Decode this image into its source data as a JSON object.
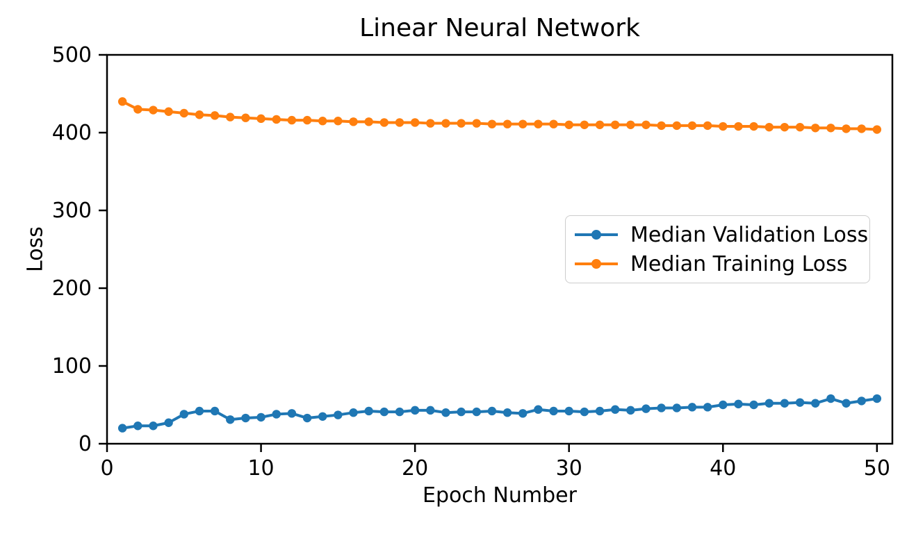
{
  "chart_data": {
    "type": "line",
    "title": "Linear Neural Network",
    "xlabel": "Epoch Number",
    "ylabel": "Loss",
    "xlim": [
      0,
      51
    ],
    "ylim": [
      0,
      500
    ],
    "xticks": [
      0,
      10,
      20,
      30,
      40,
      50
    ],
    "yticks": [
      0,
      100,
      200,
      300,
      400,
      500
    ],
    "grid": false,
    "background": "#ffffff",
    "axis_color": "#000000",
    "legend_position": "center right",
    "legend_border_color": "#cccccc",
    "x": [
      1,
      2,
      3,
      4,
      5,
      6,
      7,
      8,
      9,
      10,
      11,
      12,
      13,
      14,
      15,
      16,
      17,
      18,
      19,
      20,
      21,
      22,
      23,
      24,
      25,
      26,
      27,
      28,
      29,
      30,
      31,
      32,
      33,
      34,
      35,
      36,
      37,
      38,
      39,
      40,
      41,
      42,
      43,
      44,
      45,
      46,
      47,
      48,
      49,
      50
    ],
    "series": [
      {
        "name": "Median Validation Loss",
        "color": "#1f77b4",
        "marker": "circle",
        "values": [
          20,
          23,
          23,
          27,
          38,
          42,
          42,
          31,
          33,
          34,
          38,
          39,
          33,
          35,
          37,
          40,
          42,
          41,
          41,
          43,
          43,
          40,
          41,
          41,
          42,
          40,
          39,
          44,
          42,
          42,
          41,
          42,
          44,
          43,
          45,
          46,
          46,
          47,
          47,
          50,
          51,
          50,
          52,
          52,
          53,
          52,
          58,
          52,
          55,
          58
        ]
      },
      {
        "name": "Median Training Loss",
        "color": "#ff7f0e",
        "marker": "circle",
        "values": [
          440,
          430,
          429,
          427,
          425,
          423,
          422,
          420,
          419,
          418,
          417,
          416,
          416,
          415,
          415,
          414,
          414,
          413,
          413,
          413,
          412,
          412,
          412,
          412,
          411,
          411,
          411,
          411,
          411,
          410,
          410,
          410,
          410,
          410,
          410,
          409,
          409,
          409,
          409,
          408,
          408,
          408,
          407,
          407,
          407,
          406,
          406,
          405,
          405,
          404
        ]
      }
    ]
  }
}
